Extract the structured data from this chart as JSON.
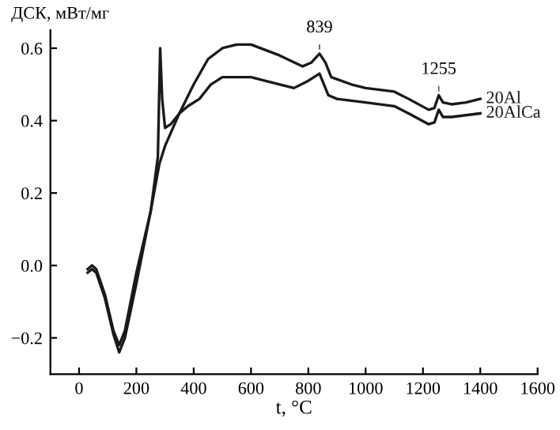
{
  "chart_data": {
    "type": "line",
    "ylabel": "ДСК, мВт/мг",
    "xlabel": "t, °C",
    "xlim": [
      -100,
      1600
    ],
    "ylim": [
      -0.3,
      0.65
    ],
    "xticks": [
      0,
      200,
      400,
      600,
      800,
      1000,
      1200,
      1400,
      1600
    ],
    "yticks": [
      {
        "value": -0.2,
        "label": "−0.2"
      },
      {
        "value": 0.0,
        "label": "0.0"
      },
      {
        "value": 0.2,
        "label": "0.2"
      },
      {
        "value": 0.4,
        "label": "0.4"
      },
      {
        "value": 0.6,
        "label": "0.6"
      }
    ],
    "grid": false,
    "legend": false,
    "series": [
      {
        "name": "20Al",
        "color": "#1a1a1a",
        "x": [
          30,
          45,
          60,
          90,
          120,
          140,
          160,
          200,
          250,
          280,
          300,
          350,
          400,
          450,
          500,
          550,
          600,
          700,
          780,
          810,
          839,
          860,
          880,
          950,
          1000,
          1100,
          1150,
          1220,
          1240,
          1255,
          1270,
          1300,
          1350,
          1400
        ],
        "values": [
          -0.01,
          0.0,
          -0.01,
          -0.08,
          -0.18,
          -0.22,
          -0.18,
          -0.02,
          0.15,
          0.28,
          0.33,
          0.42,
          0.5,
          0.57,
          0.6,
          0.61,
          0.61,
          0.58,
          0.55,
          0.56,
          0.585,
          0.56,
          0.52,
          0.5,
          0.49,
          0.48,
          0.46,
          0.43,
          0.435,
          0.47,
          0.45,
          0.445,
          0.45,
          0.46
        ]
      },
      {
        "name": "20AlCa",
        "color": "#1a1a1a",
        "x": [
          30,
          45,
          60,
          90,
          120,
          140,
          160,
          200,
          250,
          275,
          283,
          290,
          300,
          320,
          350,
          380,
          420,
          460,
          500,
          600,
          700,
          750,
          800,
          839,
          870,
          900,
          1000,
          1100,
          1150,
          1220,
          1240,
          1255,
          1270,
          1300,
          1400
        ],
        "values": [
          -0.02,
          -0.01,
          -0.02,
          -0.09,
          -0.19,
          -0.24,
          -0.2,
          -0.05,
          0.15,
          0.3,
          0.6,
          0.46,
          0.38,
          0.39,
          0.42,
          0.44,
          0.46,
          0.5,
          0.52,
          0.52,
          0.5,
          0.49,
          0.51,
          0.53,
          0.47,
          0.46,
          0.45,
          0.44,
          0.42,
          0.39,
          0.395,
          0.43,
          0.41,
          0.41,
          0.42
        ]
      }
    ],
    "annotations": [
      {
        "text": "839",
        "x": 839,
        "y": 0.585
      },
      {
        "text": "1255",
        "x": 1255,
        "y": 0.47
      }
    ]
  }
}
